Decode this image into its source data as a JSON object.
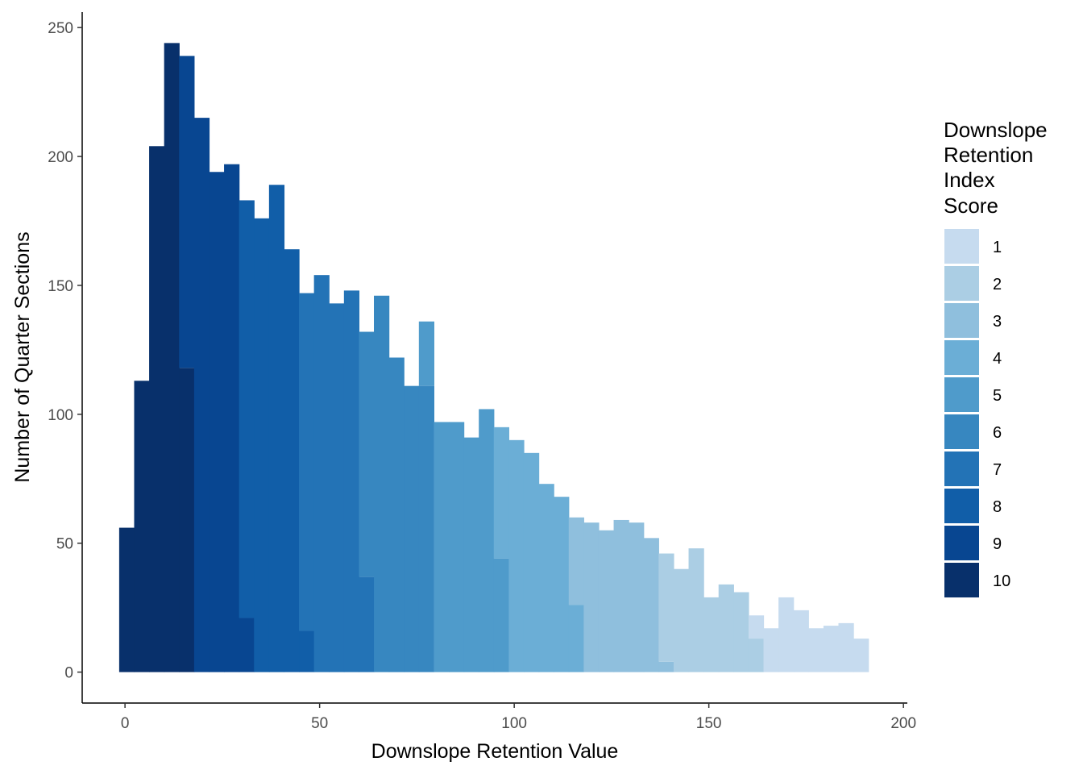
{
  "chart_data": {
    "type": "bar",
    "subtype": "stacked-histogram",
    "xlabel": "Downslope Retention Value",
    "ylabel": "Number of Quarter Sections",
    "xlim": [
      -11,
      201
    ],
    "ylim": [
      -12,
      256
    ],
    "x_ticks": [
      0,
      50,
      100,
      150,
      200
    ],
    "y_ticks": [
      0,
      50,
      100,
      150,
      200,
      250
    ],
    "grid": false,
    "legend": {
      "title_lines": [
        "Downslope",
        "Retention",
        "Index",
        "Score"
      ],
      "placement": "right",
      "entries": [
        {
          "label": "1",
          "color": "#c6dbef"
        },
        {
          "label": "2",
          "color": "#abcee4"
        },
        {
          "label": "3",
          "color": "#8fbfdd"
        },
        {
          "label": "4",
          "color": "#6baed6"
        },
        {
          "label": "5",
          "color": "#4f9bcb"
        },
        {
          "label": "6",
          "color": "#3787c0"
        },
        {
          "label": "7",
          "color": "#2373b6"
        },
        {
          "label": "8",
          "color": "#115ea8"
        },
        {
          "label": "9",
          "color": "#084691"
        },
        {
          "label": "10",
          "color": "#08306b"
        }
      ]
    },
    "bin_width": 3.85,
    "bins": [
      {
        "x0": -1.5,
        "segments": [
          {
            "score": "10",
            "count": 56
          }
        ]
      },
      {
        "x0": 2.35,
        "segments": [
          {
            "score": "10",
            "count": 113
          }
        ]
      },
      {
        "x0": 6.2,
        "segments": [
          {
            "score": "10",
            "count": 204
          }
        ]
      },
      {
        "x0": 10.05,
        "segments": [
          {
            "score": "10",
            "count": 244
          }
        ]
      },
      {
        "x0": 13.9,
        "segments": [
          {
            "score": "10",
            "count": 118
          },
          {
            "score": "9",
            "count": 121
          }
        ]
      },
      {
        "x0": 17.75,
        "segments": [
          {
            "score": "9",
            "count": 215
          }
        ]
      },
      {
        "x0": 21.6,
        "segments": [
          {
            "score": "9",
            "count": 194
          }
        ]
      },
      {
        "x0": 25.45,
        "segments": [
          {
            "score": "9",
            "count": 197
          }
        ]
      },
      {
        "x0": 29.3,
        "segments": [
          {
            "score": "9",
            "count": 21
          },
          {
            "score": "8",
            "count": 162
          }
        ]
      },
      {
        "x0": 33.15,
        "segments": [
          {
            "score": "8",
            "count": 176
          }
        ]
      },
      {
        "x0": 37.0,
        "segments": [
          {
            "score": "8",
            "count": 189
          }
        ]
      },
      {
        "x0": 40.85,
        "segments": [
          {
            "score": "8",
            "count": 164
          }
        ]
      },
      {
        "x0": 44.7,
        "segments": [
          {
            "score": "8",
            "count": 16
          },
          {
            "score": "7",
            "count": 131
          }
        ]
      },
      {
        "x0": 48.55,
        "segments": [
          {
            "score": "7",
            "count": 154
          }
        ]
      },
      {
        "x0": 52.4,
        "segments": [
          {
            "score": "7",
            "count": 143
          }
        ]
      },
      {
        "x0": 56.25,
        "segments": [
          {
            "score": "7",
            "count": 148
          }
        ]
      },
      {
        "x0": 60.1,
        "segments": [
          {
            "score": "7",
            "count": 37
          },
          {
            "score": "6",
            "count": 95
          }
        ]
      },
      {
        "x0": 63.95,
        "segments": [
          {
            "score": "6",
            "count": 146
          }
        ]
      },
      {
        "x0": 67.8,
        "segments": [
          {
            "score": "6",
            "count": 122
          }
        ]
      },
      {
        "x0": 71.65,
        "segments": [
          {
            "score": "6",
            "count": 111
          }
        ]
      },
      {
        "x0": 75.5,
        "segments": [
          {
            "score": "6",
            "count": 111
          },
          {
            "score": "5",
            "count": 25
          }
        ]
      },
      {
        "x0": 79.35,
        "segments": [
          {
            "score": "5",
            "count": 97
          }
        ]
      },
      {
        "x0": 83.2,
        "segments": [
          {
            "score": "5",
            "count": 97
          }
        ]
      },
      {
        "x0": 87.05,
        "segments": [
          {
            "score": "5",
            "count": 91
          }
        ]
      },
      {
        "x0": 90.9,
        "segments": [
          {
            "score": "5",
            "count": 102
          }
        ]
      },
      {
        "x0": 94.75,
        "segments": [
          {
            "score": "5",
            "count": 44
          },
          {
            "score": "4",
            "count": 51
          }
        ]
      },
      {
        "x0": 98.6,
        "segments": [
          {
            "score": "4",
            "count": 90
          }
        ]
      },
      {
        "x0": 102.45,
        "segments": [
          {
            "score": "4",
            "count": 85
          }
        ]
      },
      {
        "x0": 106.3,
        "segments": [
          {
            "score": "4",
            "count": 73
          }
        ]
      },
      {
        "x0": 110.15,
        "segments": [
          {
            "score": "4",
            "count": 68
          }
        ]
      },
      {
        "x0": 114.0,
        "segments": [
          {
            "score": "4",
            "count": 26
          },
          {
            "score": "3",
            "count": 34
          }
        ]
      },
      {
        "x0": 117.85,
        "segments": [
          {
            "score": "3",
            "count": 58
          }
        ]
      },
      {
        "x0": 121.7,
        "segments": [
          {
            "score": "3",
            "count": 55
          }
        ]
      },
      {
        "x0": 125.55,
        "segments": [
          {
            "score": "3",
            "count": 59
          }
        ]
      },
      {
        "x0": 129.4,
        "segments": [
          {
            "score": "3",
            "count": 58
          }
        ]
      },
      {
        "x0": 133.25,
        "segments": [
          {
            "score": "3",
            "count": 52
          }
        ]
      },
      {
        "x0": 137.1,
        "segments": [
          {
            "score": "3",
            "count": 4
          },
          {
            "score": "2",
            "count": 42
          }
        ]
      },
      {
        "x0": 140.95,
        "segments": [
          {
            "score": "2",
            "count": 40
          }
        ]
      },
      {
        "x0": 144.8,
        "segments": [
          {
            "score": "2",
            "count": 48
          }
        ]
      },
      {
        "x0": 148.65,
        "segments": [
          {
            "score": "2",
            "count": 29
          }
        ]
      },
      {
        "x0": 152.5,
        "segments": [
          {
            "score": "2",
            "count": 34
          }
        ]
      },
      {
        "x0": 156.35,
        "segments": [
          {
            "score": "2",
            "count": 31
          }
        ]
      },
      {
        "x0": 160.2,
        "segments": [
          {
            "score": "2",
            "count": 13
          },
          {
            "score": "1",
            "count": 9
          }
        ]
      },
      {
        "x0": 164.05,
        "segments": [
          {
            "score": "1",
            "count": 17
          }
        ]
      },
      {
        "x0": 167.9,
        "segments": [
          {
            "score": "1",
            "count": 29
          }
        ]
      },
      {
        "x0": 171.75,
        "segments": [
          {
            "score": "1",
            "count": 24
          }
        ]
      },
      {
        "x0": 175.6,
        "segments": [
          {
            "score": "1",
            "count": 17
          }
        ]
      },
      {
        "x0": 179.45,
        "segments": [
          {
            "score": "1",
            "count": 18
          }
        ]
      },
      {
        "x0": 183.3,
        "segments": [
          {
            "score": "1",
            "count": 19
          }
        ]
      },
      {
        "x0": 187.15,
        "segments": [
          {
            "score": "1",
            "count": 13
          }
        ]
      }
    ]
  }
}
